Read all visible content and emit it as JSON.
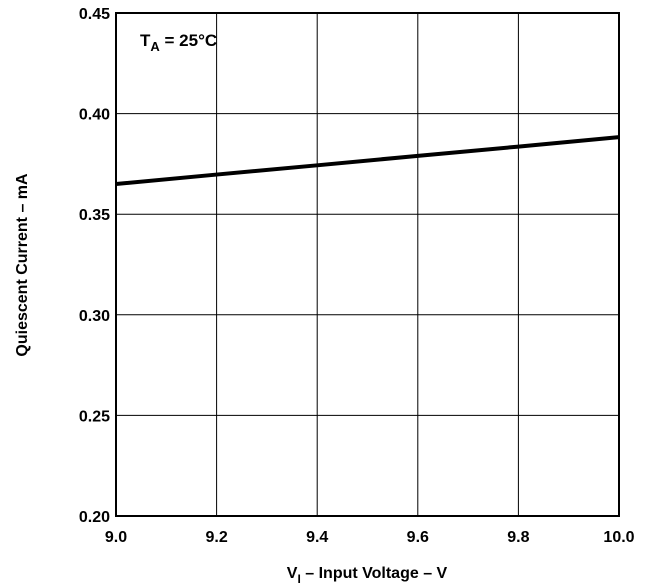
{
  "chart_data": {
    "type": "line",
    "xlabel": {
      "main": "V",
      "sub": "I",
      "rest": " – Input Voltage – V"
    },
    "ylabel": "Quiescent Current – mA",
    "annotation": {
      "main": "T",
      "sub": "A",
      "rest": " = 25°C"
    },
    "xlim": [
      9.0,
      10.0
    ],
    "ylim": [
      0.2,
      0.45
    ],
    "xticks": [
      "9.0",
      "9.2",
      "9.4",
      "9.6",
      "9.8",
      "10.0"
    ],
    "yticks": [
      "0.20",
      "0.25",
      "0.30",
      "0.35",
      "0.40",
      "0.45"
    ],
    "grid": true,
    "series": [
      {
        "x": [
          9.0,
          9.2,
          9.4,
          9.6,
          9.8,
          10.0
        ],
        "y": [
          0.365,
          0.3697,
          0.3743,
          0.379,
          0.3836,
          0.3883
        ]
      }
    ]
  }
}
